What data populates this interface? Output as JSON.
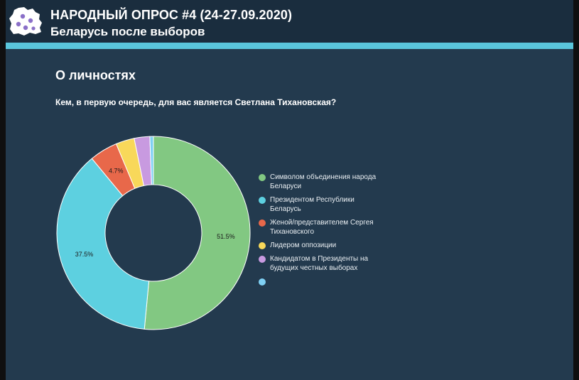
{
  "header": {
    "title": "НАРОДНЫЙ ОПРОС #4 (24-27.09.2020)",
    "subtitle": "Беларусь после выборов",
    "logo": "belarus-map-icon"
  },
  "section": {
    "title": "О личностях",
    "question": "Кем, в первую очередь, для вас является Светлана Тихановская?"
  },
  "colors": {
    "header_bg": "#1a2d3e",
    "stripe": "#5ac6dc",
    "panel_bg": "#233a4e"
  },
  "chart_data": {
    "type": "pie",
    "variant": "donut",
    "legend_position": "right",
    "series": [
      {
        "name": "Символом объединения народа Беларуси",
        "value": 51.5,
        "label": "51.5%",
        "color": "#82c882"
      },
      {
        "name": "Президентом Республики Беларусь",
        "value": 37.5,
        "label": "37.5%",
        "color": "#5dd0e0"
      },
      {
        "name": "Женой/представителем Сергея Тихановского",
        "value": 4.7,
        "label": "4.7%",
        "color": "#e8684a"
      },
      {
        "name": "Лидером оппозиции",
        "value": 3.1,
        "label": "",
        "color": "#f8d85a"
      },
      {
        "name": "Кандидатом в Президенты на будущих честных выборах",
        "value": 2.6,
        "label": "",
        "color": "#c89ae0"
      },
      {
        "name": "",
        "value": 0.6,
        "label": "",
        "color": "#7fd0f4"
      }
    ]
  }
}
